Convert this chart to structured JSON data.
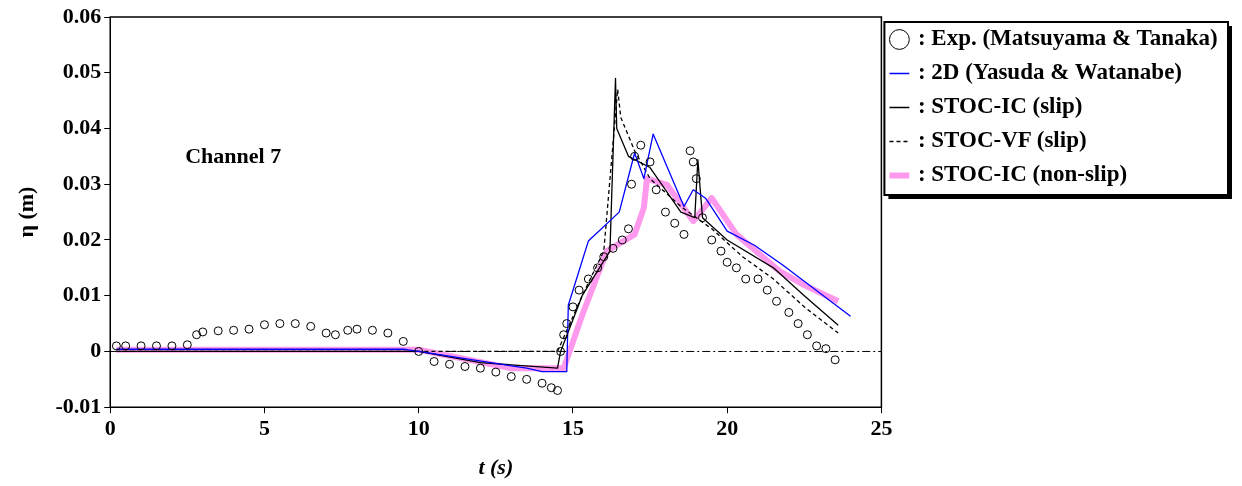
{
  "chart_data": {
    "type": "line",
    "xlabel": "t (s)",
    "ylabel": "η (m)",
    "xlim": [
      0,
      25
    ],
    "xticks": [
      0,
      5,
      10,
      15,
      20,
      25
    ],
    "ylim": [
      -0.01,
      0.06
    ],
    "yticks": [
      -0.01,
      0,
      0.01,
      0.02,
      0.03,
      0.04,
      0.05,
      0.06
    ],
    "grid": false,
    "legend": "right",
    "annotations": [
      "Channel 7"
    ],
    "ref_lines": [
      {
        "axis": "y",
        "value": 0,
        "color": "#000000",
        "line_style": "dashdot"
      }
    ],
    "series": [
      {
        "name": ": Exp. (Matsuyama & Tanaka)",
        "type": "scatter",
        "marker": "circle",
        "color": "#000000",
        "x": [
          0.2,
          0.5,
          1,
          1.5,
          2,
          2.5,
          2.8,
          3,
          3.5,
          4,
          4.5,
          5,
          5.5,
          6,
          6.5,
          7,
          7.3,
          7.7,
          8,
          8.5,
          9,
          9.5,
          10,
          10.5,
          11,
          11.5,
          12,
          12.5,
          13,
          13.5,
          14,
          14.3,
          14.5,
          14.6,
          14.7,
          14.8,
          15,
          15.2,
          15.5,
          15.8,
          16,
          16.3,
          16.6,
          16.8,
          16.9,
          17,
          17.2,
          17.5,
          17.7,
          18,
          18.3,
          18.6,
          18.8,
          18.9,
          19,
          19.2,
          19.5,
          19.8,
          20,
          20.3,
          20.6,
          21,
          21.3,
          21.6,
          22,
          22.3,
          22.6,
          22.9,
          23.2,
          23.5
        ],
        "values": [
          0.001,
          0.001,
          0.001,
          0.001,
          0.001,
          0.0012,
          0.003,
          0.0035,
          0.0037,
          0.0038,
          0.004,
          0.0048,
          0.005,
          0.005,
          0.0045,
          0.0033,
          0.003,
          0.0038,
          0.004,
          0.0038,
          0.0033,
          0.0018,
          0,
          -0.0018,
          -0.0023,
          -0.0027,
          -0.003,
          -0.0037,
          -0.0045,
          -0.005,
          -0.0057,
          -0.0065,
          -0.007,
          0,
          0.003,
          0.005,
          0.008,
          0.011,
          0.013,
          0.015,
          0.017,
          0.0185,
          0.02,
          0.022,
          0.03,
          0.035,
          0.037,
          0.034,
          0.029,
          0.025,
          0.023,
          0.021,
          0.036,
          0.034,
          0.031,
          0.024,
          0.02,
          0.018,
          0.016,
          0.015,
          0.013,
          0.013,
          0.011,
          0.009,
          0.007,
          0.005,
          0.003,
          0.001,
          0.0005,
          -0.0015
        ]
      },
      {
        "name": ": 2D (Yasuda & Watanabe)",
        "marker": "none",
        "line_style": "solid",
        "color": "#0000ff",
        "x": [
          0.2,
          9.5,
          10,
          13.5,
          14,
          14.8,
          14.85,
          15.5,
          16.5,
          17.0,
          17.3,
          17.6,
          18.6,
          18.9,
          19.3,
          20.0,
          20.9,
          21.8,
          24.0
        ],
        "values": [
          0.0004,
          0.0004,
          0,
          -0.003,
          -0.0036,
          -0.0036,
          0.0083,
          0.0198,
          0.025,
          0.0356,
          0.031,
          0.039,
          0.026,
          0.029,
          0.0275,
          0.0216,
          0.019,
          0.0155,
          0.0063
        ]
      },
      {
        "name": ": STOC-IC (slip)",
        "marker": "none",
        "line_style": "solid",
        "color": "#000000",
        "x": [
          0.2,
          10,
          12,
          14.5,
          14.6,
          15.3,
          16.2,
          16.38,
          16.42,
          16.8,
          17.5,
          18.5,
          18.95,
          19.05,
          19.2,
          20,
          21.5,
          22.5,
          23.6
        ],
        "values": [
          0,
          0,
          -0.002,
          -0.003,
          0,
          0.01,
          0.018,
          0.049,
          0.04,
          0.035,
          0.033,
          0.025,
          0.024,
          0.0344,
          0.024,
          0.02,
          0.015,
          0.01,
          0.0047
        ]
      },
      {
        "name": ": STOC-VF (slip)",
        "marker": "none",
        "line_style": "dashed",
        "color": "#000000",
        "x": [
          0.2,
          14.5,
          15.3,
          16,
          16.45,
          16.55,
          17,
          17.5,
          18.5,
          19.5,
          20.5,
          21.5,
          22.5,
          23.6
        ],
        "values": [
          0,
          0,
          0.01,
          0.018,
          0.047,
          0.042,
          0.036,
          0.031,
          0.026,
          0.022,
          0.017,
          0.013,
          0.008,
          0.0033
        ]
      },
      {
        "name": ": STOC-IC (non-slip)",
        "marker": "none",
        "line_style": "solid",
        "color": "#ff99ee",
        "x": [
          0.2,
          10,
          13,
          14.7,
          15.3,
          15.75,
          16.1,
          17.0,
          17.3,
          17.4,
          18.05,
          18.9,
          19.5,
          20.3,
          21.7,
          22.5,
          23.6
        ],
        "values": [
          0.0003,
          0.0003,
          -0.003,
          -0.003,
          0.0065,
          0.013,
          0.018,
          0.021,
          0.0258,
          0.031,
          0.0299,
          0.0234,
          0.0275,
          0.021,
          0.0144,
          0.0119,
          0.009
        ]
      }
    ]
  }
}
